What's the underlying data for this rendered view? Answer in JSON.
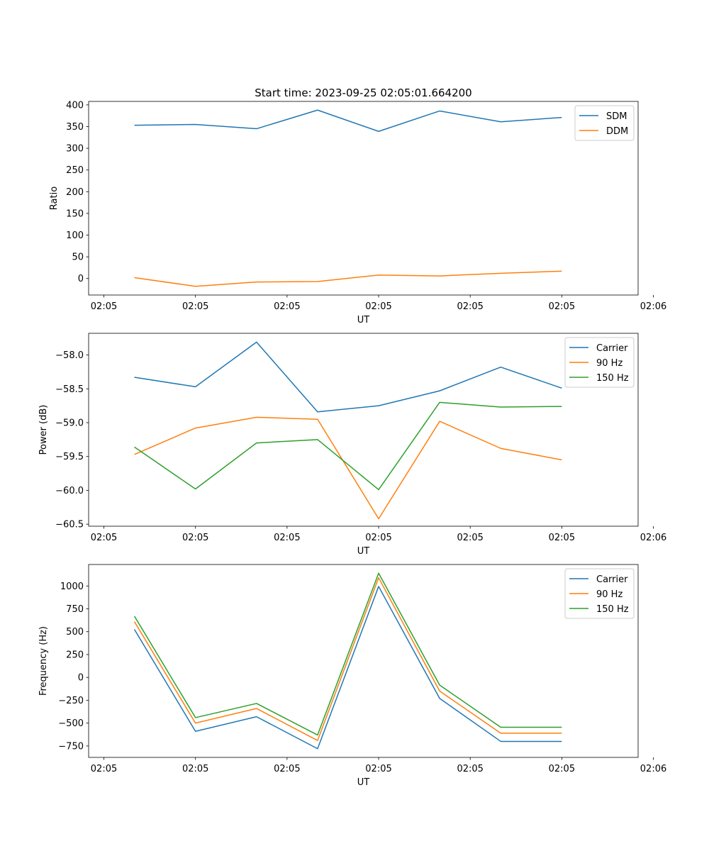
{
  "figure": {
    "title": "Start time: 2023-09-25 02:05:01.664200"
  },
  "colors": {
    "blue": "#1f77b4",
    "orange": "#ff7f0e",
    "green": "#2ca02c"
  },
  "chart_data": [
    {
      "type": "line",
      "title": "Start time: 2023-09-25 02:05:01.664200",
      "xlabel": "UT",
      "ylabel": "Ratio",
      "x": [
        1,
        2,
        3,
        4,
        5,
        6,
        7,
        8
      ],
      "xlim": [
        0.25,
        9.25
      ],
      "x_ticks": [
        0.5,
        2,
        3.5,
        5,
        6.5,
        8,
        9.5
      ],
      "x_tick_labels": [
        "02:05",
        "02:05",
        "02:05",
        "02:05",
        "02:05",
        "02:05",
        "02:06"
      ],
      "ylim": [
        -38,
        408
      ],
      "y_ticks": [
        0,
        50,
        100,
        150,
        200,
        250,
        300,
        350,
        400
      ],
      "y_tick_labels": [
        "0",
        "50",
        "100",
        "150",
        "200",
        "250",
        "300",
        "350",
        "400"
      ],
      "grid": false,
      "legend_position": "top-right",
      "series": [
        {
          "name": "SDM",
          "color": "#1f77b4",
          "values": [
            353,
            355,
            345,
            388,
            339,
            386,
            361,
            371
          ]
        },
        {
          "name": "DDM",
          "color": "#ff7f0e",
          "values": [
            2,
            -18,
            -8,
            -7,
            8,
            6,
            12,
            17
          ]
        }
      ]
    },
    {
      "type": "line",
      "title": "",
      "xlabel": "UT",
      "ylabel": "Power (dB)",
      "x": [
        1,
        2,
        3,
        4,
        5,
        6,
        7,
        8
      ],
      "xlim": [
        0.25,
        9.25
      ],
      "x_ticks": [
        0.5,
        2,
        3.5,
        5,
        6.5,
        8,
        9.5
      ],
      "x_tick_labels": [
        "02:05",
        "02:05",
        "02:05",
        "02:05",
        "02:05",
        "02:05",
        "02:06"
      ],
      "ylim": [
        -60.53,
        -57.68
      ],
      "y_ticks": [
        -60.5,
        -60.0,
        -59.5,
        -59.0,
        -58.5,
        -58.0
      ],
      "y_tick_labels": [
        "−60.5",
        "−60.0",
        "−59.5",
        "−59.0",
        "−58.5",
        "−58.0"
      ],
      "grid": false,
      "legend_position": "top-right",
      "series": [
        {
          "name": "Carrier",
          "color": "#1f77b4",
          "values": [
            -58.33,
            -58.47,
            -57.81,
            -58.84,
            -58.75,
            -58.53,
            -58.18,
            -58.49
          ]
        },
        {
          "name": "90 Hz",
          "color": "#ff7f0e",
          "values": [
            -59.47,
            -59.08,
            -58.92,
            -58.95,
            -60.42,
            -58.98,
            -59.38,
            -59.55
          ]
        },
        {
          "name": "150 Hz",
          "color": "#2ca02c",
          "values": [
            -59.36,
            -59.98,
            -59.3,
            -59.25,
            -59.99,
            -58.7,
            -58.77,
            -58.76
          ]
        }
      ]
    },
    {
      "type": "line",
      "title": "",
      "xlabel": "UT",
      "ylabel": "Frequency (Hz)",
      "x": [
        1,
        2,
        3,
        4,
        5,
        6,
        7,
        8
      ],
      "xlim": [
        0.25,
        9.25
      ],
      "x_ticks": [
        0.5,
        2,
        3.5,
        5,
        6.5,
        8,
        9.5
      ],
      "x_tick_labels": [
        "02:05",
        "02:05",
        "02:05",
        "02:05",
        "02:05",
        "02:05",
        "02:06"
      ],
      "ylim": [
        -875,
        1235
      ],
      "y_ticks": [
        -750,
        -500,
        -250,
        0,
        250,
        500,
        750,
        1000
      ],
      "y_tick_labels": [
        "−750",
        "−500",
        "−250",
        "0",
        "250",
        "500",
        "750",
        "1000"
      ],
      "grid": false,
      "legend_position": "top-right",
      "series": [
        {
          "name": "Carrier",
          "color": "#1f77b4",
          "values": [
            525,
            -590,
            -430,
            -780,
            995,
            -230,
            -700,
            -700
          ]
        },
        {
          "name": "90 Hz",
          "color": "#ff7f0e",
          "values": [
            610,
            -500,
            -340,
            -690,
            1090,
            -150,
            -610,
            -610
          ]
        },
        {
          "name": "150 Hz",
          "color": "#2ca02c",
          "values": [
            670,
            -440,
            -285,
            -630,
            1140,
            -85,
            -545,
            -545
          ]
        }
      ]
    }
  ]
}
